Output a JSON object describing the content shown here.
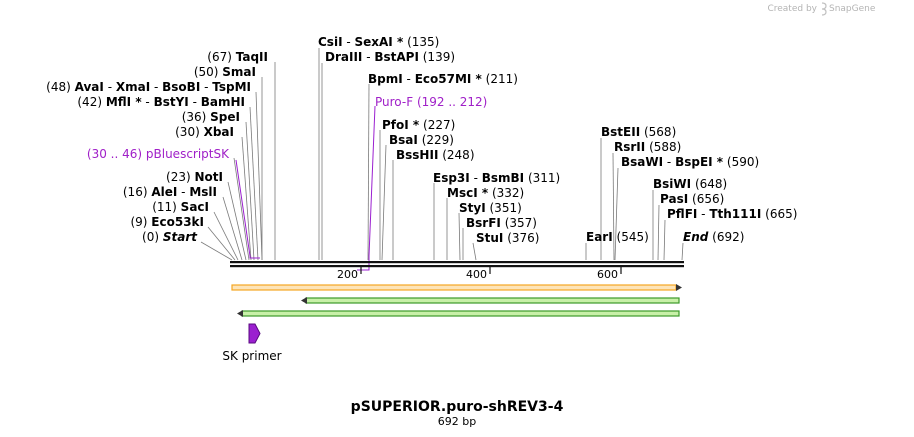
{
  "credit": {
    "prefix": "Created by",
    "brand": "SnapGene"
  },
  "title": "pSUPERIOR.puro-shREV3-4",
  "subtitle": "692 bp",
  "ruler": {
    "ticks": [
      "200",
      "400",
      "600"
    ]
  },
  "primers": {
    "puro_f": {
      "range": "(192 .. 212)",
      "name": "Puro-F"
    },
    "pbluescript_sk": {
      "range": "(30 .. 46)",
      "name": "pBluescriptSK"
    },
    "sk_primer": {
      "name": "SK primer"
    }
  },
  "left_labels": {
    "taqii": {
      "pos": "(67)",
      "name": "TaqII"
    },
    "smai": {
      "pos": "(50)",
      "name": "SmaI"
    },
    "avai": {
      "pos": "(48)",
      "n1": "AvaI",
      "n2": "XmaI",
      "n3": "BsoBI",
      "n4": "TspMI"
    },
    "mfli": {
      "pos": "(42)",
      "n1": "MflI *",
      "n2": "BstYI",
      "n3": "BamHI"
    },
    "spei": {
      "pos": "(36)",
      "name": "SpeI"
    },
    "xbai": {
      "pos": "(30)",
      "name": "XbaI"
    },
    "noti": {
      "pos": "(23)",
      "name": "NotI"
    },
    "alei": {
      "pos": "(16)",
      "n1": "AleI",
      "n2": "MslI"
    },
    "saci": {
      "pos": "(11)",
      "name": "SacI"
    },
    "eco53ki": {
      "pos": "(9)",
      "name": "Eco53kI"
    },
    "start": {
      "pos": "(0)",
      "name": "Start"
    }
  },
  "mid_labels": {
    "csii": {
      "n1": "CsiI",
      "n2": "SexAI *",
      "pos": "(135)"
    },
    "draiii": {
      "n1": "DraIII",
      "n2": "BstAPI",
      "pos": "(139)"
    },
    "bpmi": {
      "n1": "BpmI",
      "n2": "Eco57MI *",
      "pos": "(211)"
    },
    "pfoi": {
      "name": "PfoI *",
      "pos": "(227)"
    },
    "bsai": {
      "name": "BsaI",
      "pos": "(229)"
    },
    "bsshii": {
      "name": "BssHII",
      "pos": "(248)"
    },
    "esp3i": {
      "n1": "Esp3I",
      "n2": "BsmBI",
      "pos": "(311)"
    },
    "msci": {
      "name": "MscI *",
      "pos": "(332)"
    },
    "styi": {
      "name": "StyI",
      "pos": "(351)"
    },
    "bsrfi": {
      "name": "BsrFI",
      "pos": "(357)"
    },
    "stui": {
      "name": "StuI",
      "pos": "(376)"
    }
  },
  "right_labels": {
    "bsteii": {
      "name": "BstEII",
      "pos": "(568)"
    },
    "rsrii": {
      "name": "RsrII",
      "pos": "(588)"
    },
    "bsawi": {
      "n1": "BsaWI",
      "n2": "BspEI *",
      "pos": "(590)"
    },
    "bsiwi": {
      "name": "BsiWI",
      "pos": "(648)"
    },
    "pasi": {
      "name": "PasI",
      "pos": "(656)"
    },
    "pflfi": {
      "n1": "PflFI",
      "n2": "Tth111I",
      "pos": "(665)"
    },
    "eari": {
      "name": "EarI",
      "pos": "(545)"
    },
    "end": {
      "name": "End",
      "pos": "(692)"
    }
  },
  "features": {
    "orange": {
      "color": "#f5a623",
      "fill": "#fde4b8"
    },
    "green": {
      "color": "#3c9a2a",
      "fill": "#c8f0a8"
    },
    "primer_color": "#9b20d0"
  }
}
